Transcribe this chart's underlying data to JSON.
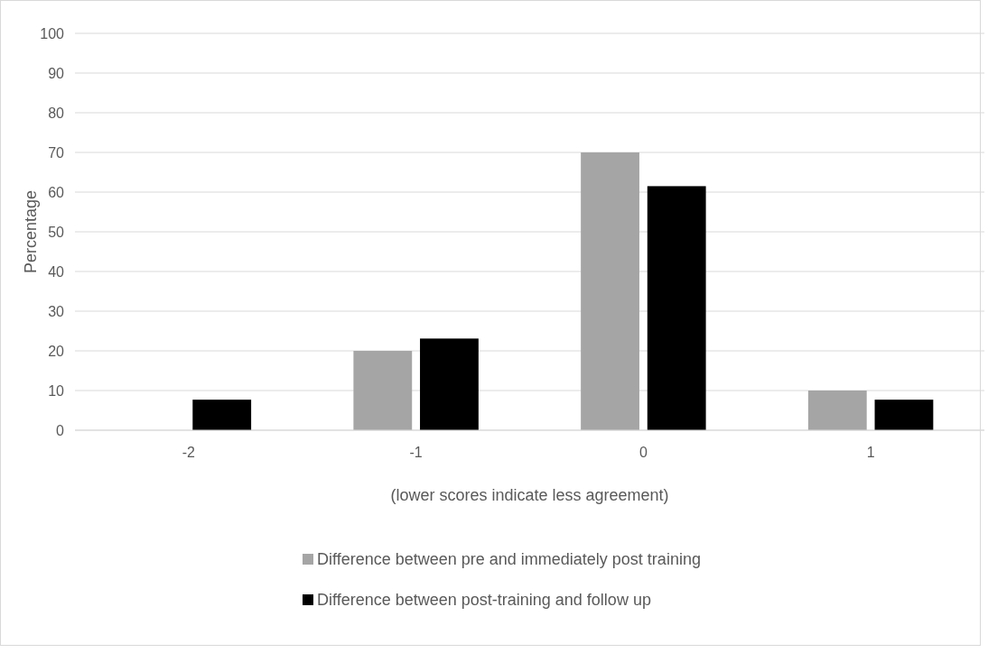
{
  "chart_data": {
    "type": "bar",
    "xlabel": "(lower scores indicate less agreement)",
    "ylabel": "Percentage",
    "categories": [
      "-2",
      "-1",
      "0",
      "1"
    ],
    "series": [
      {
        "name": "Difference between pre and immediately post training",
        "color": "#a5a5a5",
        "values": [
          0,
          20,
          70,
          10
        ]
      },
      {
        "name": "Difference between post-training and follow up",
        "color": "#000000",
        "values": [
          7.7,
          23.1,
          61.5,
          7.7
        ]
      }
    ],
    "ylim": [
      0,
      100
    ],
    "yticks": [
      0,
      10,
      20,
      30,
      40,
      50,
      60,
      70,
      80,
      90,
      100
    ],
    "grid": "y",
    "legend": "bottom"
  }
}
